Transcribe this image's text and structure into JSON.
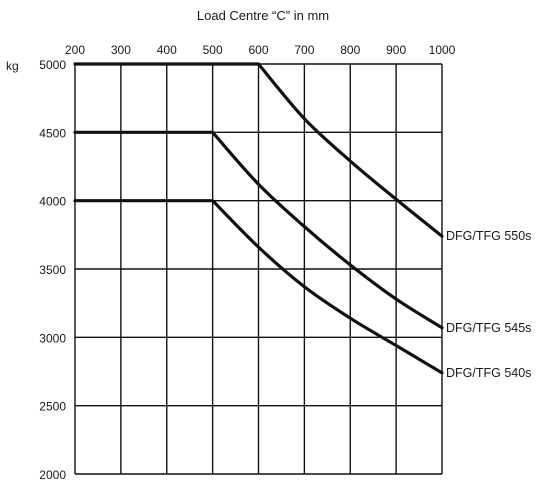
{
  "chart_data": {
    "type": "line",
    "title": "Load Centre “C” in mm",
    "y_unit_label": "kg",
    "xlim": [
      200,
      1000
    ],
    "ylim": [
      2000,
      5000
    ],
    "x_ticks": [
      "200",
      "300",
      "400",
      "500",
      "600",
      "700",
      "800",
      "900",
      "1000"
    ],
    "y_ticks": [
      "5000",
      "4500",
      "4000",
      "3500",
      "3000",
      "2500",
      "2000"
    ],
    "x_gridlines": [
      200,
      300,
      400,
      500,
      600,
      700,
      800,
      900,
      1000
    ],
    "y_gridlines": [
      5000,
      4500,
      4000,
      3500,
      3000,
      2500,
      2000
    ],
    "grid": true,
    "series": [
      {
        "name": "DFG/TFG 550s",
        "x": [
          200,
          600,
          700,
          800,
          900,
          1000
        ],
        "y": [
          5000,
          5000,
          4600,
          4290,
          4010,
          3740
        ]
      },
      {
        "name": "DFG/TFG 545s",
        "x": [
          200,
          500,
          600,
          700,
          800,
          900,
          1000
        ],
        "y": [
          4500,
          4500,
          4120,
          3810,
          3530,
          3280,
          3070
        ]
      },
      {
        "name": "DFG/TFG 540s",
        "x": [
          200,
          500,
          600,
          700,
          800,
          900,
          1000
        ],
        "y": [
          4000,
          4000,
          3660,
          3370,
          3140,
          2940,
          2740
        ]
      }
    ]
  }
}
